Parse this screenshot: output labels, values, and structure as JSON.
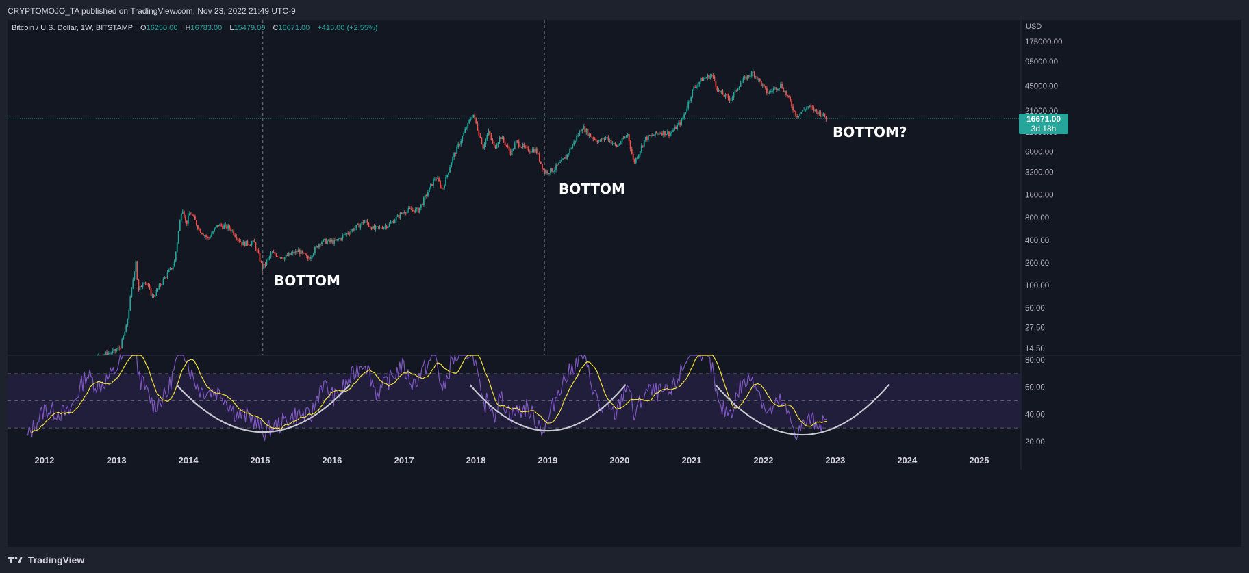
{
  "header": {
    "published_text": "CRYPTOMOJO_TA published on TradingView.com, Nov 23, 2022 21:49 UTC-9"
  },
  "legend": {
    "symbol_text": "Bitcoin / U.S. Dollar, 1W, BITSTAMP",
    "open_prefix": "O",
    "open": "16250.00",
    "high_prefix": "H",
    "high": "16783.00",
    "low_prefix": "L",
    "low": "15479.00",
    "close_prefix": "C",
    "close": "16671.00",
    "change": "+415.00 (+2.55%)"
  },
  "price_axis": {
    "currency": "USD",
    "ticks": [
      "175000.00",
      "95000.00",
      "45000.00",
      "21000.00",
      "11000.00",
      "6000.00",
      "3200.00",
      "1600.00",
      "800.00",
      "400.00",
      "200.00",
      "100.00",
      "50.00",
      "27.50",
      "14.50"
    ],
    "last_price": "16671.00",
    "countdown": "3d 18h"
  },
  "rsi_axis": {
    "ticks": [
      "80.00",
      "60.00",
      "40.00",
      "20.00"
    ],
    "bands": {
      "upper": 70,
      "middle": 50,
      "lower": 30
    }
  },
  "time_axis": {
    "years": [
      "2012",
      "2013",
      "2014",
      "2015",
      "2016",
      "2017",
      "2018",
      "2019",
      "2020",
      "2021",
      "2022",
      "2023",
      "2024",
      "2025"
    ]
  },
  "annotations": {
    "bottom_2015": "BOTTOM",
    "bottom_2018": "BOTTOM",
    "bottom_2022": "BOTTOM?"
  },
  "colors": {
    "background": "#131722",
    "outer": "#1e222d",
    "up": "#26a69a",
    "down": "#ef5350",
    "rsi": "#7e57c2",
    "rsi_ma": "#f5e33b",
    "band_fill": "#211e3b",
    "arc": "#c8c8d2",
    "price_badge": "#26a69a"
  },
  "brand": {
    "name": "TradingView"
  },
  "chart_data": {
    "type": "candlestick",
    "symbol": "Bitcoin / U.S. Dollar",
    "interval": "1W",
    "exchange": "BITSTAMP",
    "y_scale": "log",
    "y_range": [
      12,
      240000
    ],
    "x_range": [
      "2011-09",
      "2025-10"
    ],
    "price_path": [
      {
        "date": "2011-09-01",
        "price": 5
      },
      {
        "date": "2012-06-01",
        "price": 6
      },
      {
        "date": "2012-09-01",
        "price": 11
      },
      {
        "date": "2012-12-15",
        "price": 13
      },
      {
        "date": "2013-01-20",
        "price": 15
      },
      {
        "date": "2013-02-20",
        "price": 28
      },
      {
        "date": "2013-04-10",
        "price": 230
      },
      {
        "date": "2013-04-20",
        "price": 80
      },
      {
        "date": "2013-05-20",
        "price": 120
      },
      {
        "date": "2013-07-05",
        "price": 70
      },
      {
        "date": "2013-09-01",
        "price": 125
      },
      {
        "date": "2013-10-20",
        "price": 190
      },
      {
        "date": "2013-11-30",
        "price": 1150
      },
      {
        "date": "2013-12-20",
        "price": 650
      },
      {
        "date": "2014-01-10",
        "price": 950
      },
      {
        "date": "2014-02-25",
        "price": 560
      },
      {
        "date": "2014-04-10",
        "price": 420
      },
      {
        "date": "2014-06-01",
        "price": 640
      },
      {
        "date": "2014-08-01",
        "price": 580
      },
      {
        "date": "2014-10-01",
        "price": 360
      },
      {
        "date": "2014-12-01",
        "price": 370
      },
      {
        "date": "2015-01-14",
        "price": 170
      },
      {
        "date": "2015-03-01",
        "price": 270
      },
      {
        "date": "2015-05-01",
        "price": 235
      },
      {
        "date": "2015-07-15",
        "price": 290
      },
      {
        "date": "2015-09-01",
        "price": 225
      },
      {
        "date": "2015-11-05",
        "price": 390
      },
      {
        "date": "2016-01-15",
        "price": 380
      },
      {
        "date": "2016-06-15",
        "price": 720
      },
      {
        "date": "2016-08-01",
        "price": 560
      },
      {
        "date": "2016-10-15",
        "price": 640
      },
      {
        "date": "2017-01-05",
        "price": 1000
      },
      {
        "date": "2017-03-15",
        "price": 1000
      },
      {
        "date": "2017-06-10",
        "price": 2800
      },
      {
        "date": "2017-07-15",
        "price": 1900
      },
      {
        "date": "2017-09-01",
        "price": 4700
      },
      {
        "date": "2017-12-17",
        "price": 19500
      },
      {
        "date": "2018-02-06",
        "price": 7000
      },
      {
        "date": "2018-03-05",
        "price": 11000
      },
      {
        "date": "2018-04-05",
        "price": 6800
      },
      {
        "date": "2018-05-05",
        "price": 9700
      },
      {
        "date": "2018-06-28",
        "price": 5800
      },
      {
        "date": "2018-07-25",
        "price": 8200
      },
      {
        "date": "2018-09-15",
        "price": 6400
      },
      {
        "date": "2018-11-01",
        "price": 6400
      },
      {
        "date": "2018-12-15",
        "price": 3200
      },
      {
        "date": "2019-02-01",
        "price": 3500
      },
      {
        "date": "2019-04-01",
        "price": 5000
      },
      {
        "date": "2019-06-26",
        "price": 13000
      },
      {
        "date": "2019-08-01",
        "price": 10000
      },
      {
        "date": "2019-09-20",
        "price": 8200
      },
      {
        "date": "2019-10-26",
        "price": 9500
      },
      {
        "date": "2019-12-15",
        "price": 7000
      },
      {
        "date": "2020-02-12",
        "price": 10300
      },
      {
        "date": "2020-03-13",
        "price": 4200
      },
      {
        "date": "2020-05-10",
        "price": 9000
      },
      {
        "date": "2020-07-25",
        "price": 11000
      },
      {
        "date": "2020-09-15",
        "price": 10500
      },
      {
        "date": "2020-11-15",
        "price": 16000
      },
      {
        "date": "2021-01-08",
        "price": 41000
      },
      {
        "date": "2021-02-20",
        "price": 55000
      },
      {
        "date": "2021-04-14",
        "price": 63000
      },
      {
        "date": "2021-05-20",
        "price": 37000
      },
      {
        "date": "2021-07-20",
        "price": 30000
      },
      {
        "date": "2021-09-05",
        "price": 50000
      },
      {
        "date": "2021-11-10",
        "price": 69000
      },
      {
        "date": "2022-01-22",
        "price": 36000
      },
      {
        "date": "2022-03-30",
        "price": 47000
      },
      {
        "date": "2022-05-10",
        "price": 30000
      },
      {
        "date": "2022-06-18",
        "price": 18000
      },
      {
        "date": "2022-08-15",
        "price": 24000
      },
      {
        "date": "2022-10-15",
        "price": 19500
      },
      {
        "date": "2022-11-20",
        "price": 16671
      }
    ],
    "rsi": {
      "name": "RSI",
      "y_range": [
        15,
        81
      ],
      "y_ticks": [
        20,
        40,
        60,
        80
      ],
      "bands": [
        30,
        50,
        70
      ],
      "rsi_path": [
        {
          "date": "2011-10-01",
          "value": 22
        },
        {
          "date": "2012-01-01",
          "value": 44
        },
        {
          "date": "2012-05-01",
          "value": 40
        },
        {
          "date": "2012-08-01",
          "value": 70
        },
        {
          "date": "2012-10-01",
          "value": 60
        },
        {
          "date": "2012-12-15",
          "value": 70
        },
        {
          "date": "2013-03-20",
          "value": 95
        },
        {
          "date": "2013-05-01",
          "value": 66
        },
        {
          "date": "2013-07-10",
          "value": 46
        },
        {
          "date": "2013-09-15",
          "value": 55
        },
        {
          "date": "2013-11-30",
          "value": 93
        },
        {
          "date": "2014-01-15",
          "value": 70
        },
        {
          "date": "2014-03-01",
          "value": 58
        },
        {
          "date": "2014-06-15",
          "value": 56
        },
        {
          "date": "2014-09-01",
          "value": 40
        },
        {
          "date": "2014-11-15",
          "value": 38
        },
        {
          "date": "2015-01-15",
          "value": 27
        },
        {
          "date": "2015-04-01",
          "value": 32
        },
        {
          "date": "2015-07-01",
          "value": 40
        },
        {
          "date": "2015-09-15",
          "value": 38
        },
        {
          "date": "2015-11-10",
          "value": 63
        },
        {
          "date": "2016-01-15",
          "value": 52
        },
        {
          "date": "2016-06-15",
          "value": 80
        },
        {
          "date": "2016-08-15",
          "value": 55
        },
        {
          "date": "2016-12-20",
          "value": 76
        },
        {
          "date": "2017-02-15",
          "value": 62
        },
        {
          "date": "2017-06-10",
          "value": 85
        },
        {
          "date": "2017-07-15",
          "value": 55
        },
        {
          "date": "2017-09-01",
          "value": 80
        },
        {
          "date": "2017-12-17",
          "value": 88
        },
        {
          "date": "2018-02-06",
          "value": 44
        },
        {
          "date": "2018-03-05",
          "value": 52
        },
        {
          "date": "2018-04-05",
          "value": 40
        },
        {
          "date": "2018-05-05",
          "value": 53
        },
        {
          "date": "2018-06-28",
          "value": 40
        },
        {
          "date": "2018-09-15",
          "value": 45
        },
        {
          "date": "2018-12-15",
          "value": 28
        },
        {
          "date": "2019-03-01",
          "value": 60
        },
        {
          "date": "2019-06-26",
          "value": 85
        },
        {
          "date": "2019-09-20",
          "value": 45
        },
        {
          "date": "2019-12-15",
          "value": 40
        },
        {
          "date": "2020-02-12",
          "value": 65
        },
        {
          "date": "2020-03-13",
          "value": 38
        },
        {
          "date": "2020-05-10",
          "value": 57
        },
        {
          "date": "2020-09-15",
          "value": 55
        },
        {
          "date": "2020-12-01",
          "value": 78
        },
        {
          "date": "2021-01-08",
          "value": 95
        },
        {
          "date": "2021-02-20",
          "value": 86
        },
        {
          "date": "2021-04-14",
          "value": 74
        },
        {
          "date": "2021-05-20",
          "value": 44
        },
        {
          "date": "2021-07-20",
          "value": 42
        },
        {
          "date": "2021-09-05",
          "value": 60
        },
        {
          "date": "2021-11-10",
          "value": 68
        },
        {
          "date": "2022-01-22",
          "value": 40
        },
        {
          "date": "2022-03-30",
          "value": 50
        },
        {
          "date": "2022-06-18",
          "value": 26
        },
        {
          "date": "2022-08-15",
          "value": 36
        },
        {
          "date": "2022-10-15",
          "value": 34
        },
        {
          "date": "2022-11-20",
          "value": 32
        }
      ]
    },
    "arcs": [
      {
        "from": "2013-11-01",
        "to": "2016-04-01",
        "bottom": 27
      },
      {
        "from": "2017-12-01",
        "to": "2020-02-01",
        "bottom": 28
      },
      {
        "from": "2021-05-01",
        "to": "2023-10-01",
        "bottom": 25
      }
    ],
    "markers": [
      {
        "date": "2015-01-14",
        "label": "BOTTOM"
      },
      {
        "date": "2018-12-15",
        "label": "BOTTOM"
      }
    ]
  }
}
